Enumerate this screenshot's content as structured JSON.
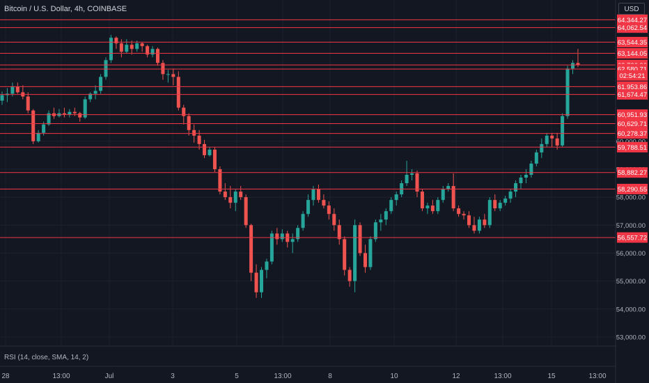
{
  "header": {
    "symbol_title": "Bitcoin / U.S. Dollar, 4h, COINBASE",
    "currency": "USD"
  },
  "indicator": {
    "label": "RSI (14, close, SMA, 14, 2)"
  },
  "colors": {
    "background": "#131722",
    "up": "#26a69a",
    "down": "#ef5350",
    "level_line": "#f23645",
    "grid": "#1e222d",
    "axis_text": "#b2b5be"
  },
  "chart_data": {
    "type": "candlestick",
    "title": "Bitcoin / U.S. Dollar, 4h, COINBASE",
    "xlabel": "",
    "ylabel": "",
    "ylim": [
      52700,
      65050
    ],
    "grid": true,
    "x_ticks": [
      "28",
      "13:00",
      "Jul",
      "3",
      "5",
      "13:00",
      "8",
      "10",
      "12",
      "13:00",
      "15",
      "13:00"
    ],
    "y_ticks": [
      53000,
      54000,
      55000,
      56000,
      57000,
      58000,
      59000,
      60000
    ],
    "y_tick_labels": [
      "53,000.00",
      "54,000.00",
      "55,000.00",
      "56,000.00",
      "57,000.00",
      "58,000.00",
      "59,000.00",
      "60,000.00"
    ],
    "horizontal_levels": [
      {
        "value": 64344.27,
        "label": "64,344.27"
      },
      {
        "value": 64062.54,
        "label": "64,062.54"
      },
      {
        "value": 63544.35,
        "label": "63,544.35"
      },
      {
        "value": 63144.05,
        "label": "63,144.05"
      },
      {
        "value": 62726.9,
        "label": "62,726.90"
      },
      {
        "value": 62580.71,
        "label": "62,580.71"
      },
      {
        "value": 61953.86,
        "label": "61,953.86"
      },
      {
        "value": 61674.47,
        "label": "61,674.47"
      },
      {
        "value": 60951.93,
        "label": "60,951.93"
      },
      {
        "value": 60629.71,
        "label": "60,629.71"
      },
      {
        "value": 60278.37,
        "label": "60,278.37"
      },
      {
        "value": 59788.51,
        "label": "59,788.51"
      },
      {
        "value": 58882.27,
        "label": "58,882.27"
      },
      {
        "value": 58290.55,
        "label": "58,290.55"
      },
      {
        "value": 56557.72,
        "label": "56,557.72"
      }
    ],
    "last_price": {
      "value": 62726.9,
      "label": "62,726.90",
      "countdown": "02:54:21"
    },
    "candles": [
      [
        61450,
        61780,
        61300,
        61650
      ],
      [
        61650,
        61900,
        61400,
        61700
      ],
      [
        61700,
        62100,
        61600,
        61950
      ],
      [
        61950,
        62100,
        61700,
        61750
      ],
      [
        61750,
        62000,
        61500,
        61600
      ],
      [
        61600,
        61750,
        61000,
        61100
      ],
      [
        61100,
        61150,
        59900,
        60000
      ],
      [
        60000,
        60400,
        59950,
        60300
      ],
      [
        60300,
        60700,
        60200,
        60600
      ],
      [
        60600,
        61100,
        60550,
        61000
      ],
      [
        61000,
        61200,
        60800,
        60900
      ],
      [
        60900,
        61150,
        60850,
        61000
      ],
      [
        61000,
        61200,
        60850,
        60950
      ],
      [
        60950,
        61150,
        60850,
        61050
      ],
      [
        61050,
        61200,
        60900,
        61000
      ],
      [
        61000,
        61050,
        60700,
        60850
      ],
      [
        60850,
        61600,
        60800,
        61500
      ],
      [
        61500,
        61750,
        61400,
        61700
      ],
      [
        61700,
        62000,
        61500,
        61800
      ],
      [
        61800,
        62400,
        61700,
        62300
      ],
      [
        62300,
        63000,
        62200,
        62900
      ],
      [
        62900,
        63800,
        62800,
        63700
      ],
      [
        63700,
        63750,
        63300,
        63500
      ],
      [
        63500,
        63650,
        63000,
        63200
      ],
      [
        63200,
        63650,
        63150,
        63450
      ],
      [
        63450,
        63600,
        63100,
        63300
      ],
      [
        63300,
        63600,
        63200,
        63500
      ],
      [
        63500,
        63550,
        63200,
        63400
      ],
      [
        63400,
        63450,
        63000,
        63100
      ],
      [
        63100,
        63400,
        63000,
        63300
      ],
      [
        63300,
        63350,
        62700,
        62800
      ],
      [
        62800,
        62900,
        62200,
        62400
      ],
      [
        62400,
        62550,
        62100,
        62400
      ],
      [
        62400,
        62600,
        62000,
        62300
      ],
      [
        62300,
        62500,
        61100,
        61200
      ],
      [
        61200,
        61300,
        60600,
        60900
      ],
      [
        60900,
        61000,
        60200,
        60400
      ],
      [
        60400,
        60600,
        59950,
        60200
      ],
      [
        60200,
        60400,
        59700,
        59900
      ],
      [
        59900,
        60050,
        59400,
        59500
      ],
      [
        59500,
        59800,
        59450,
        59700
      ],
      [
        59700,
        59800,
        58900,
        59000
      ],
      [
        59000,
        59100,
        58100,
        58200
      ],
      [
        58200,
        58500,
        57900,
        58000
      ],
      [
        58000,
        58400,
        57600,
        57800
      ],
      [
        57800,
        58300,
        57500,
        58200
      ],
      [
        58200,
        58400,
        57900,
        58000
      ],
      [
        58000,
        58100,
        56900,
        57000
      ],
      [
        57000,
        57050,
        55000,
        55300
      ],
      [
        55300,
        55600,
        54400,
        54600
      ],
      [
        54600,
        55500,
        54400,
        55400
      ],
      [
        55400,
        55800,
        55100,
        55700
      ],
      [
        55700,
        56800,
        55600,
        56700
      ],
      [
        56700,
        56900,
        56300,
        56500
      ],
      [
        56500,
        56850,
        56400,
        56700
      ],
      [
        56700,
        56800,
        56200,
        56400
      ],
      [
        56400,
        56700,
        56000,
        56500
      ],
      [
        56500,
        57000,
        56400,
        56900
      ],
      [
        56900,
        57500,
        56800,
        57400
      ],
      [
        57400,
        58100,
        57300,
        57900
      ],
      [
        57900,
        58400,
        57700,
        58300
      ],
      [
        58300,
        58450,
        57800,
        57900
      ],
      [
        57900,
        58100,
        57600,
        57700
      ],
      [
        57700,
        57850,
        57200,
        57400
      ],
      [
        57400,
        57600,
        56800,
        57000
      ],
      [
        57000,
        57200,
        56300,
        56500
      ],
      [
        56500,
        56600,
        55200,
        55400
      ],
      [
        55400,
        55500,
        54800,
        55000
      ],
      [
        55000,
        57200,
        54600,
        57000
      ],
      [
        57000,
        57100,
        55900,
        56000
      ],
      [
        56000,
        56300,
        55300,
        55500
      ],
      [
        55500,
        56600,
        55400,
        56500
      ],
      [
        56500,
        57200,
        56400,
        57100
      ],
      [
        57100,
        57400,
        56800,
        57200
      ],
      [
        57200,
        57600,
        57000,
        57500
      ],
      [
        57500,
        58000,
        57400,
        57900
      ],
      [
        57900,
        58200,
        57700,
        58100
      ],
      [
        58100,
        58600,
        58000,
        58500
      ],
      [
        58500,
        59300,
        58400,
        58800
      ],
      [
        58800,
        59000,
        58600,
        58850
      ],
      [
        58850,
        58950,
        58000,
        58200
      ],
      [
        58200,
        58300,
        57500,
        57600
      ],
      [
        57600,
        57800,
        57400,
        57700
      ],
      [
        57700,
        57900,
        57400,
        57500
      ],
      [
        57500,
        58000,
        57400,
        57900
      ],
      [
        57900,
        58400,
        57800,
        58300
      ],
      [
        58300,
        58500,
        58200,
        58400
      ],
      [
        58400,
        58850,
        57500,
        57600
      ],
      [
        57600,
        57700,
        57300,
        57400
      ],
      [
        57400,
        57500,
        57200,
        57350
      ],
      [
        57350,
        57500,
        56900,
        57000
      ],
      [
        57000,
        57300,
        56700,
        56800
      ],
      [
        56800,
        57300,
        56700,
        57200
      ],
      [
        57200,
        57400,
        56900,
        57000
      ],
      [
        57000,
        58000,
        56900,
        57900
      ],
      [
        57900,
        58100,
        57500,
        57600
      ],
      [
        57600,
        57900,
        57500,
        57800
      ],
      [
        57800,
        58050,
        57700,
        57950
      ],
      [
        57950,
        58300,
        57800,
        58200
      ],
      [
        58200,
        58600,
        58000,
        58500
      ],
      [
        58500,
        58800,
        58300,
        58700
      ],
      [
        58700,
        59000,
        58500,
        58800
      ],
      [
        58800,
        59300,
        58700,
        59200
      ],
      [
        59200,
        59700,
        59100,
        59600
      ],
      [
        59600,
        60100,
        59400,
        59900
      ],
      [
        59900,
        60300,
        59800,
        60200
      ],
      [
        60200,
        60300,
        59800,
        60100
      ],
      [
        60100,
        60300,
        59700,
        59850
      ],
      [
        59850,
        61000,
        59800,
        60900
      ],
      [
        60900,
        62700,
        60800,
        62600
      ],
      [
        62600,
        62900,
        62400,
        62800
      ],
      [
        62800,
        63300,
        62650,
        62727
      ]
    ]
  }
}
